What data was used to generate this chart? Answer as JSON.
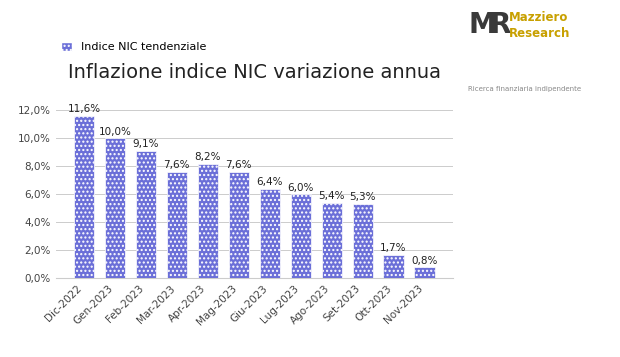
{
  "title": "Inflazione indice NIC variazione annua",
  "legend_label": "Indice NIC tendenziale",
  "categories": [
    "Dic-2022",
    "Gen-2023",
    "Feb-2023",
    "Mar-2023",
    "Apr-2023",
    "Mag-2023",
    "Giu-2023",
    "Lug-2023",
    "Ago-2023",
    "Set-2023",
    "Ott-2023",
    "Nov-2023"
  ],
  "values": [
    11.6,
    10.0,
    9.1,
    7.6,
    8.2,
    7.6,
    6.4,
    6.0,
    5.4,
    5.3,
    1.7,
    0.8
  ],
  "bar_color": "#6B6FD8",
  "bar_hatch": "....",
  "bar_edgecolor": "#ffffff",
  "ylim": [
    0,
    13.5
  ],
  "yticks": [
    0.0,
    2.0,
    4.0,
    6.0,
    8.0,
    10.0,
    12.0
  ],
  "ytick_labels": [
    "0,0%",
    "2,0%",
    "4,0%",
    "6,0%",
    "8,0%",
    "10,0%",
    "12,0%"
  ],
  "background_color": "#ffffff",
  "title_fontsize": 14,
  "label_fontsize": 7.5,
  "tick_fontsize": 7.5,
  "logo_MR": "MR",
  "logo_brand": "Mazziero\nResearch",
  "logo_sub": "Ricerca finanziaria indipendente",
  "logo_color_brand": "#C8A000",
  "logo_color_icon": "#3a3a3a",
  "grid_color": "#cccccc"
}
